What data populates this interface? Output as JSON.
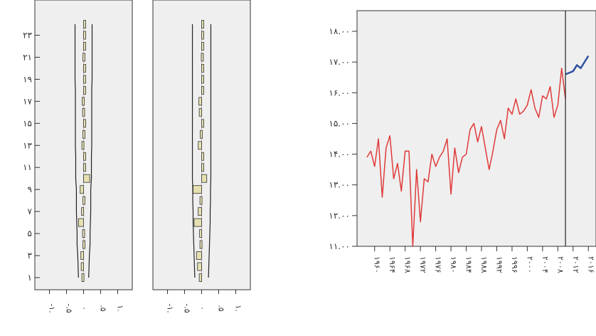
{
  "chart_data": [
    {
      "type": "bar",
      "orientation": "horizontal",
      "panel": "left-1",
      "y_tick_labels": [
        "۱",
        "۳",
        "۵",
        "۷",
        "۹",
        "۱۱",
        "۱۳",
        "۱۵",
        "۱۷",
        "۱۹",
        "۲۱",
        "۲۳"
      ],
      "x_tick_labels": [
        "-۱.",
        "-.۵",
        ".",
        ".۵",
        "۱."
      ],
      "xlim": [
        -1,
        1
      ],
      "lags": [
        1,
        2,
        3,
        4,
        5,
        6,
        7,
        8,
        9,
        10,
        11,
        12,
        13,
        14,
        15,
        16,
        17,
        18,
        19,
        20,
        21,
        22,
        23,
        24
      ],
      "values": [
        -0.05,
        -0.07,
        -0.08,
        -0.02,
        -0.03,
        -0.15,
        -0.06,
        -0.02,
        -0.1,
        0.18,
        0.02,
        0.01,
        -0.05,
        -0.02,
        0.01,
        -0.03,
        -0.04,
        0.05,
        0.02,
        0.04,
        -0.02,
        0.01,
        0.03,
        0.04
      ],
      "band_upper": [
        0.15,
        0.16,
        0.17,
        0.19,
        0.19,
        0.2,
        0.21,
        0.21,
        0.21,
        0.23,
        0.23,
        0.23,
        0.24,
        0.24,
        0.24,
        0.24,
        0.24,
        0.24,
        0.25,
        0.25,
        0.25,
        0.25,
        0.25,
        0.25
      ]
    },
    {
      "type": "bar",
      "orientation": "horizontal",
      "panel": "left-2",
      "x_tick_labels": [
        "-۱.",
        "-.۵",
        ".",
        ".۵",
        "۱."
      ],
      "xlim": [
        -1,
        1
      ],
      "lags": [
        1,
        2,
        3,
        4,
        5,
        6,
        7,
        8,
        9,
        10,
        11,
        12,
        13,
        14,
        15,
        16,
        17,
        18,
        19,
        20,
        21,
        22,
        23,
        24
      ],
      "values": [
        -0.07,
        -0.12,
        -0.15,
        -0.05,
        -0.06,
        -0.22,
        -0.1,
        -0.05,
        -0.25,
        0.15,
        0.03,
        0.01,
        -0.1,
        -0.04,
        0.02,
        -0.07,
        -0.08,
        0.04,
        0.02,
        0.03,
        -0.01,
        0.02,
        0.02,
        0.04
      ],
      "band_upper": [
        0.2,
        0.21,
        0.22,
        0.23,
        0.24,
        0.25,
        0.25,
        0.26,
        0.26,
        0.27,
        0.27,
        0.27,
        0.27,
        0.27,
        0.27,
        0.27,
        0.27,
        0.27,
        0.27,
        0.27,
        0.27,
        0.27,
        0.27,
        0.27
      ]
    },
    {
      "type": "line",
      "panel": "right",
      "y_tick_labels": [
        "۱۱.۰۰",
        "۱۲.۰۰",
        "۱۳.۰۰",
        "۱۴.۰۰",
        "۱۵.۰۰",
        "۱۶.۰۰",
        "۱۷.۰۰",
        "۱۸.۰۰"
      ],
      "ylim": [
        11,
        18.5
      ],
      "y_ticks": [
        11,
        12,
        13,
        14,
        15,
        16,
        17,
        18
      ],
      "x_tick_labels": [
        "۱۹۶۰",
        "۱۹۶۴",
        "۱۹۶۸",
        "۱۹۷۲",
        "۱۹۷۶",
        "۱۹۸۰",
        "۱۹۸۴",
        "۱۹۸۸",
        "۱۹۹۲",
        "۱۹۹۶",
        "۲۰۰۰",
        "۲۰۰۴",
        "۲۰۰۸",
        "۲۰۱۲",
        "۲۰۱۶"
      ],
      "xlim": [
        1958,
        2017
      ],
      "series": [
        {
          "color": "#e03a3a",
          "x": [
            1958,
            1959,
            1960,
            1961,
            1962,
            1963,
            1964,
            1965,
            1966,
            1967,
            1968,
            1969,
            1970,
            1971,
            1972,
            1973,
            1974,
            1975,
            1976,
            1977,
            1978,
            1979,
            1980,
            1981,
            1982,
            1983,
            1984,
            1985,
            1986,
            1987,
            1988,
            1989,
            1990,
            1991,
            1992,
            1993,
            1994,
            1995,
            1996,
            1997,
            1998,
            1999,
            2000,
            2001,
            2002,
            2003,
            2004,
            2005,
            2006,
            2007,
            2008,
            2009,
            2010
          ],
          "y": [
            13.9,
            14.1,
            13.6,
            14.5,
            12.6,
            14.2,
            14.6,
            13.2,
            13.7,
            12.8,
            14.1,
            14.1,
            11.0,
            13.5,
            11.8,
            13.2,
            13.1,
            14.0,
            13.6,
            13.9,
            14.1,
            14.5,
            12.7,
            14.2,
            13.4,
            13.9,
            14.0,
            14.8,
            15.0,
            14.4,
            14.9,
            14.2,
            13.5,
            14.1,
            14.8,
            15.1,
            14.5,
            15.5,
            15.3,
            15.8,
            15.3,
            15.4,
            15.6,
            16.1,
            15.5,
            15.2,
            15.9,
            15.8,
            16.2,
            15.2,
            15.6,
            16.8,
            15.8
          ]
        },
        {
          "color": "#2d4f9e",
          "x": [
            2010,
            2011,
            2012,
            2013,
            2014,
            2015,
            2016
          ],
          "y": [
            16.6,
            16.65,
            16.7,
            16.9,
            16.8,
            17.0,
            17.2
          ]
        }
      ],
      "forecast_start_line": 2010
    }
  ]
}
